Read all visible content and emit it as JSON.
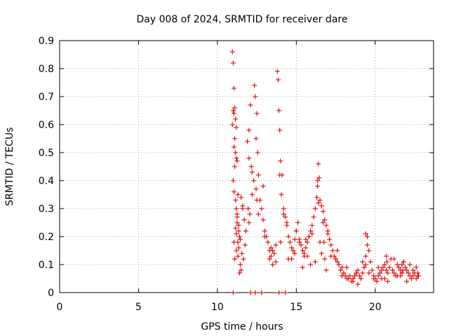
{
  "chart_data": {
    "type": "scatter",
    "title": "Day 008 of 2024, SRMTID for receiver dare",
    "xlabel": "GPS time / hours",
    "ylabel": "SRMTID / TECUs",
    "xlim": [
      0,
      23.7
    ],
    "ylim": [
      0,
      0.9
    ],
    "xticks": [
      0,
      5,
      10,
      15,
      20
    ],
    "xtick_labels": [
      "0",
      "5",
      "10",
      "15",
      "20"
    ],
    "yticks": [
      0,
      0.1,
      0.2,
      0.3,
      0.4,
      0.5,
      0.6,
      0.7,
      0.8,
      0.9
    ],
    "ytick_labels": [
      "0",
      "0.1",
      "0.2",
      "0.3",
      "0.4",
      "0.5",
      "0.6",
      "0.7",
      "0.8",
      "0.9"
    ],
    "grid": true,
    "marker": "+",
    "color": "#e00000",
    "series": [
      {
        "name": "dare",
        "x": [
          10.95,
          11.0,
          11.05,
          11.0,
          11.05,
          10.95,
          11.1,
          11.15,
          11.2,
          11.1,
          11.05,
          11.15,
          11.2,
          11.25,
          11.1,
          11.0,
          11.05,
          11.15,
          11.2,
          11.3,
          11.25,
          11.35,
          11.4,
          11.3,
          11.2,
          11.1,
          11.05,
          11.15,
          11.25,
          11.35,
          11.45,
          11.5,
          11.4,
          11.3,
          11.2,
          11.25,
          11.35,
          11.45,
          11.55,
          11.6,
          11.7,
          11.8,
          11.75,
          11.65,
          11.5,
          11.6,
          11.9,
          12.0,
          12.1,
          12.0,
          12.15,
          12.2,
          12.3,
          12.35,
          12.4,
          12.5,
          12.45,
          12.55,
          12.6,
          12.7,
          12.8,
          12.9,
          13.0,
          13.1,
          13.2,
          13.3,
          13.4,
          13.5,
          13.6,
          13.7,
          13.8,
          13.85,
          13.9,
          13.95,
          14.0,
          14.1,
          14.2,
          14.3,
          14.4,
          14.5,
          14.6,
          14.7,
          14.8,
          14.9,
          15.0,
          15.1,
          15.2,
          15.3,
          15.4,
          15.5,
          15.6,
          15.7,
          15.8,
          15.9,
          16.0,
          16.1,
          16.2,
          16.3,
          16.35,
          16.4,
          16.45,
          16.5,
          16.6,
          16.7,
          16.8,
          16.9,
          17.0,
          17.1,
          17.2,
          17.3,
          17.4,
          17.5,
          17.6,
          17.7,
          17.8,
          17.9,
          18.0,
          18.1,
          18.2,
          18.3,
          18.4,
          18.5,
          18.6,
          18.7,
          18.8,
          18.9,
          19.0,
          19.1,
          19.2,
          19.3,
          19.4,
          19.5,
          19.6,
          19.7,
          19.8,
          19.9,
          20.0,
          20.1,
          20.2,
          20.3,
          20.4,
          20.5,
          20.6,
          20.7,
          20.8,
          20.9,
          21.0,
          21.1,
          21.2,
          21.3,
          21.4,
          21.5,
          21.6,
          21.7,
          21.8,
          21.9,
          22.0,
          22.1,
          22.2,
          22.3,
          22.4,
          22.5,
          22.6,
          22.7,
          11.0,
          12.1,
          12.4,
          12.8,
          13.9,
          14.3,
          12.0,
          13.0,
          13.5,
          14.0,
          14.5,
          15.0,
          15.5,
          16.0,
          16.5,
          17.0,
          14.2,
          15.2,
          16.2,
          17.2,
          18.2,
          19.2,
          20.2,
          21.2,
          22.2,
          12.6,
          13.4,
          14.7,
          15.8,
          16.8,
          18.6,
          19.6,
          20.6,
          21.6,
          22.6,
          13.3,
          14.4,
          15.4,
          16.6,
          17.6,
          18.8,
          19.9,
          20.8,
          21.8,
          22.4,
          12.2,
          12.9,
          13.7,
          14.9,
          15.9,
          16.9,
          17.9,
          18.9,
          19.4,
          20.4,
          21.4,
          22.0,
          13.95,
          14.05,
          16.35,
          16.4,
          19.4,
          19.5,
          12.45,
          12.5,
          11.95,
          12.05,
          15.6,
          15.7,
          16.7,
          16.75,
          20.7,
          20.75,
          21.7,
          21.75,
          22.7,
          22.75
        ],
        "y": [
          0.86,
          0.82,
          0.73,
          0.65,
          0.64,
          0.6,
          0.66,
          0.62,
          0.59,
          0.55,
          0.52,
          0.5,
          0.48,
          0.47,
          0.45,
          0.4,
          0.36,
          0.33,
          0.3,
          0.35,
          0.25,
          0.22,
          0.2,
          0.18,
          0.15,
          0.12,
          0.18,
          0.23,
          0.28,
          0.16,
          0.1,
          0.08,
          0.07,
          0.13,
          0.21,
          0.27,
          0.24,
          0.19,
          0.14,
          0.31,
          0.26,
          0.22,
          0.17,
          0.12,
          0.34,
          0.3,
          0.54,
          0.58,
          0.67,
          0.48,
          0.45,
          0.43,
          0.4,
          0.74,
          0.7,
          0.64,
          0.55,
          0.5,
          0.42,
          0.33,
          0.3,
          0.26,
          0.22,
          0.2,
          0.18,
          0.15,
          0.13,
          0.1,
          0.14,
          0.17,
          0.79,
          0.76,
          0.65,
          0.58,
          0.47,
          0.42,
          0.3,
          0.27,
          0.24,
          0.2,
          0.18,
          0.16,
          0.15,
          0.19,
          0.22,
          0.25,
          0.18,
          0.17,
          0.15,
          0.13,
          0.16,
          0.18,
          0.2,
          0.22,
          0.24,
          0.27,
          0.3,
          0.34,
          0.4,
          0.46,
          0.41,
          0.33,
          0.31,
          0.29,
          0.26,
          0.24,
          0.21,
          0.19,
          0.17,
          0.15,
          0.13,
          0.12,
          0.11,
          0.1,
          0.08,
          0.09,
          0.07,
          0.06,
          0.05,
          0.05,
          0.06,
          0.04,
          0.05,
          0.06,
          0.07,
          0.08,
          0.06,
          0.05,
          0.07,
          0.09,
          0.13,
          0.2,
          0.15,
          0.11,
          0.08,
          0.06,
          0.05,
          0.04,
          0.06,
          0.07,
          0.08,
          0.09,
          0.1,
          0.08,
          0.07,
          0.09,
          0.12,
          0.08,
          0.07,
          0.06,
          0.1,
          0.09,
          0.08,
          0.07,
          0.11,
          0.09,
          0.08,
          0.07,
          0.06,
          0.05,
          0.08,
          0.07,
          0.09,
          0.06,
          0.0,
          0.0,
          0.0,
          0.0,
          0.0,
          0.0,
          0.25,
          0.2,
          0.15,
          0.18,
          0.12,
          0.22,
          0.14,
          0.21,
          0.18,
          0.22,
          0.28,
          0.19,
          0.11,
          0.13,
          0.09,
          0.11,
          0.09,
          0.12,
          0.1,
          0.28,
          0.16,
          0.12,
          0.2,
          0.12,
          0.04,
          0.07,
          0.05,
          0.06,
          0.05,
          0.12,
          0.25,
          0.09,
          0.14,
          0.15,
          0.07,
          0.05,
          0.04,
          0.11,
          0.06,
          0.35,
          0.38,
          0.11,
          0.14,
          0.1,
          0.08,
          0.06,
          0.03,
          0.1,
          0.05,
          0.06,
          0.04,
          0.42,
          0.35,
          0.38,
          0.32,
          0.21,
          0.17,
          0.37,
          0.33,
          0.3,
          0.28,
          0.19,
          0.13,
          0.25,
          0.18,
          0.13,
          0.11,
          0.1,
          0.08,
          0.07,
          0.06
        ]
      }
    ]
  }
}
